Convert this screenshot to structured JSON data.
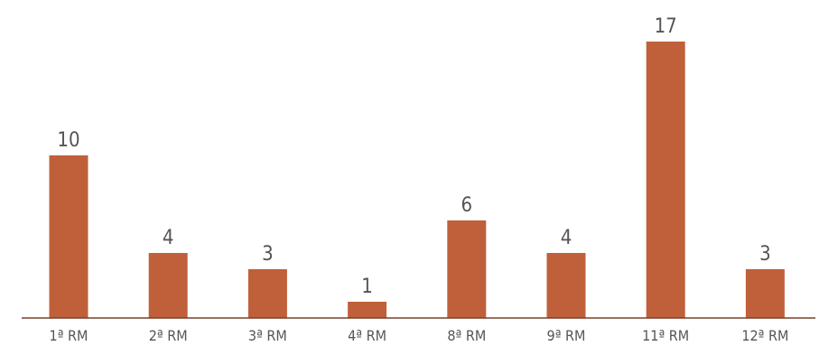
{
  "chart_data": {
    "type": "bar",
    "categories": [
      "1ª RM",
      "2ª RM",
      "3ª RM",
      "4ª RM",
      "8ª RM",
      "9ª RM",
      "11ª RM",
      "12ª RM"
    ],
    "values": [
      10,
      4,
      3,
      1,
      6,
      4,
      17,
      3
    ],
    "title": "",
    "xlabel": "",
    "ylabel": "",
    "ylim": [
      0,
      17
    ],
    "grid": false,
    "legend": "none",
    "data_labels": true,
    "colors": {
      "bar": "#C0603B",
      "axis": "#7A3E2A",
      "text": "#555555"
    }
  }
}
